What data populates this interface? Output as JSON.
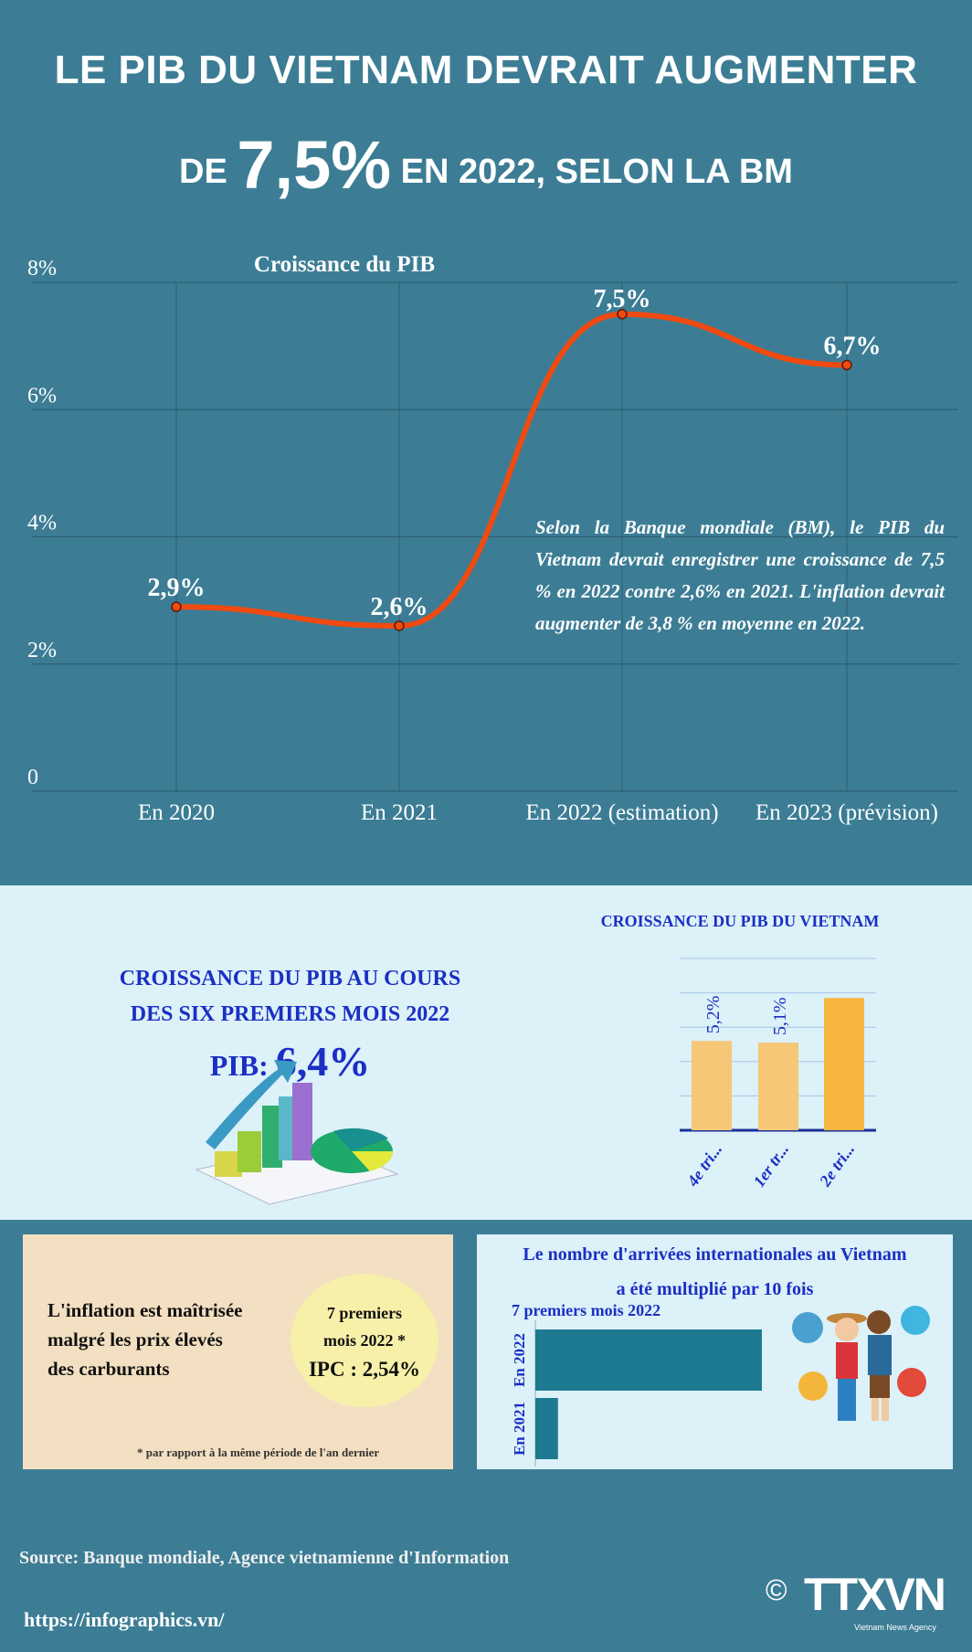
{
  "header": {
    "line1": "LE PIB DU VIETNAM DEVRAIT AUGMENTER",
    "line2_pre": "DE",
    "line2_big": "7,5%",
    "line2_post": "EN 2022, SELON LA BM"
  },
  "annotation": "Selon la Banque mondiale (BM), le PIB du Vietnam devrait enregistrer une croissance de 7,5 % en 2022 contre 2,6% en 2021. L'inflation devrait augmenter de 3,8 % en moyenne en 2022.",
  "six_months": {
    "title_line1": "CROISSANCE DU PIB AU COURS",
    "title_line2": "DES SIX PREMIERS MOIS 2022",
    "pib_label": "PIB:",
    "pib_value": "6,4%"
  },
  "inflation": {
    "text_lines": [
      "L'inflation est maîtrisée",
      "malgré les prix élevés",
      "des carburants"
    ],
    "circle_line1": "7 premiers",
    "circle_line2": "mois 2022 *",
    "ipc": "IPC : 2,54%",
    "footnote": "* par rapport à la même période de l'an dernier"
  },
  "arrivals": {
    "title_line1": "Le nombre d'arrivées internationales au Vietnam",
    "title_line2": "a été multiplié par 10 fois",
    "subtitle": "7 premiers mois 2022"
  },
  "footer": {
    "source": "Source: Banque mondiale, Agence vietnamienne d'Information",
    "url": "https://infographics.vn/",
    "copyright": "©",
    "logo": "TTXVN",
    "logo_sub": "Vietnam News Agency"
  },
  "colors": {
    "background": "#3c7d95",
    "line": "#f04a10",
    "light_band": "#dcf1f8",
    "blue_text": "#1b2fc4",
    "bar_light": "#f5c777",
    "bar_dark": "#f6b640",
    "arrivals_bar": "#1d7a91"
  },
  "chart_data": [
    {
      "type": "line",
      "title": "Croissance du PIB",
      "categories": [
        "En 2020",
        "En 2021",
        "En 2022 (estimation)",
        "En 2023 (prévision)"
      ],
      "values": [
        2.9,
        2.6,
        7.5,
        6.7
      ],
      "data_labels": [
        "2,9%",
        "2,6%",
        "7,5%",
        "6,7%"
      ],
      "yticks": [
        "0",
        "2%",
        "4%",
        "6%",
        "8%"
      ],
      "ylim": [
        0,
        8
      ],
      "grid": true
    },
    {
      "type": "bar",
      "title": "CROISSANCE DU PIB DU VIETNAM",
      "categories": [
        "4e tri...",
        "1er tr...",
        "2e tri..."
      ],
      "values": [
        5.2,
        5.1,
        7.7
      ],
      "data_labels": [
        "5,2%",
        "5,1%",
        ""
      ],
      "ylim": [
        0,
        10
      ],
      "grid": true
    },
    {
      "type": "bar",
      "orientation": "horizontal",
      "categories": [
        "En 2022",
        "En 2021"
      ],
      "values": [
        10,
        1
      ],
      "grid": false
    }
  ]
}
